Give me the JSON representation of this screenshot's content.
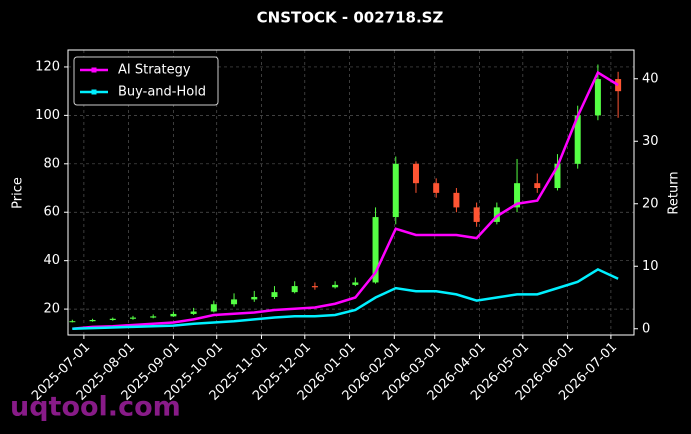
{
  "chart_data": {
    "type": "candlestick",
    "title": "CNSTOCK - 002718.SZ",
    "ylabel": "Price",
    "y2label": "Return",
    "watermark": "uqtool.com",
    "x": [
      "2025-06-23",
      "2025-07-07",
      "2025-07-21",
      "2025-08-04",
      "2025-08-18",
      "2025-09-01",
      "2025-09-15",
      "2025-09-29",
      "2025-10-13",
      "2025-10-27",
      "2025-11-10",
      "2025-11-24",
      "2025-12-08",
      "2025-12-22",
      "2026-01-05",
      "2026-01-19",
      "2026-02-02",
      "2026-02-16",
      "2026-03-02",
      "2026-03-16",
      "2026-03-30",
      "2026-04-13",
      "2026-04-27",
      "2026-05-11",
      "2026-05-25",
      "2026-06-08",
      "2026-06-22",
      "2026-07-06"
    ],
    "candles": {
      "up_color": "#55ff44",
      "down_color": "#ff5533",
      "open": [
        14.8,
        15.0,
        15.5,
        16.0,
        16.5,
        17.0,
        18.0,
        19.0,
        22.0,
        24.0,
        25.0,
        27.0,
        29.5,
        29.0,
        30.0,
        31.0,
        58.0,
        80.0,
        72.0,
        68.0,
        62.0,
        56.0,
        62.0,
        72.0,
        70.0,
        80.0,
        100.0,
        115.0
      ],
      "high": [
        15.6,
        16.0,
        16.5,
        17.2,
        17.8,
        19.0,
        20.5,
        23.5,
        26.5,
        27.5,
        29.5,
        31.5,
        31.0,
        31.5,
        33.0,
        62.0,
        83.0,
        81.0,
        74.0,
        70.0,
        64.0,
        64.0,
        82.0,
        76.0,
        84.0,
        104.0,
        121.0,
        118.0
      ],
      "low": [
        14.5,
        14.8,
        15.2,
        15.6,
        16.2,
        16.8,
        17.6,
        18.6,
        21.0,
        23.0,
        24.2,
        26.5,
        28.0,
        28.5,
        29.5,
        30.5,
        55.0,
        68.0,
        66.0,
        60.0,
        54.0,
        55.0,
        60.0,
        68.0,
        69.0,
        78.0,
        98.0,
        99.0
      ],
      "close": [
        15.0,
        15.5,
        16.0,
        16.5,
        17.0,
        18.0,
        19.0,
        22.0,
        24.0,
        25.0,
        27.0,
        29.5,
        29.0,
        30.0,
        31.0,
        58.0,
        80.0,
        72.0,
        68.0,
        62.0,
        56.0,
        62.0,
        72.0,
        70.0,
        80.0,
        100.0,
        115.0,
        110.0
      ]
    },
    "series": [
      {
        "name": "AI Strategy",
        "color": "#ff00ff",
        "axis": "y2",
        "values": [
          0,
          0.3,
          0.4,
          0.6,
          0.8,
          1,
          1.5,
          2.2,
          2.4,
          2.6,
          3,
          3.2,
          3.4,
          4,
          5,
          9,
          16,
          15,
          15,
          15,
          14.5,
          18,
          20,
          20.5,
          26,
          34,
          41,
          39
        ]
      },
      {
        "name": "Buy-and-Hold",
        "color": "#00f0ff",
        "axis": "y2",
        "values": [
          0,
          0.1,
          0.2,
          0.3,
          0.4,
          0.5,
          0.8,
          1,
          1.2,
          1.5,
          1.8,
          2,
          2,
          2.2,
          3,
          5,
          6.5,
          6,
          6,
          5.5,
          4.5,
          5,
          5.5,
          5.5,
          6.5,
          7.5,
          9.5,
          8
        ]
      }
    ],
    "xlim": [
      "2025-06-20",
      "2026-07-17"
    ],
    "xticks": [
      "2025-07-01",
      "2025-08-01",
      "2025-09-01",
      "2025-10-01",
      "2025-11-01",
      "2025-12-01",
      "2026-01-01",
      "2026-02-01",
      "2026-03-01",
      "2026-04-01",
      "2026-05-01",
      "2026-06-01",
      "2026-07-01"
    ],
    "ylim": [
      9.3,
      127
    ],
    "yticks": [
      20,
      40,
      60,
      80,
      100,
      120
    ],
    "y2lim": [
      -1,
      44.6
    ],
    "y2ticks": [
      0,
      10,
      20,
      30,
      40
    ],
    "grid": true,
    "legend": "upper left"
  }
}
